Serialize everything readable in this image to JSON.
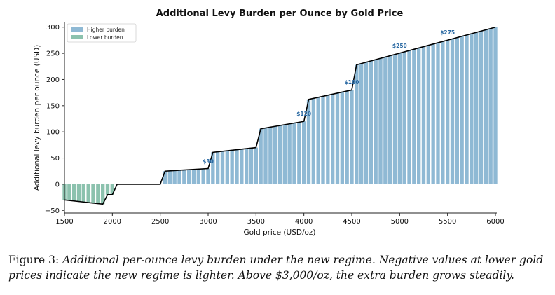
{
  "chart_data": {
    "type": "bar",
    "title": "Additional Levy Burden per Ounce by Gold Price",
    "xlabel": "Gold price (USD/oz)",
    "ylabel": "Additional levy burden per ounce (USD)",
    "xlim": [
      1500,
      6000
    ],
    "ylim": [
      -55,
      305
    ],
    "xticks": [
      1500,
      2000,
      2500,
      3000,
      3500,
      4000,
      4500,
      5000,
      5500,
      6000
    ],
    "yticks": [
      -50,
      0,
      50,
      100,
      150,
      200,
      250,
      300
    ],
    "bar_spacing": 50,
    "legend": {
      "position": "top-left",
      "entries": [
        {
          "name": "Higher burden",
          "color": "#8fb9d4"
        },
        {
          "name": "Lower burden",
          "color": "#8cc2ae"
        }
      ]
    },
    "series": [
      {
        "name": "Higher burden",
        "color": "#8fb9d4"
      },
      {
        "name": "Lower burden",
        "color": "#8cc2ae"
      }
    ],
    "breakpoints": [
      {
        "x": 1500,
        "y": -30
      },
      {
        "x": 1900,
        "y": -38
      },
      {
        "x": 1950,
        "y": -20
      },
      {
        "x": 2000,
        "y": -20
      },
      {
        "x": 2050,
        "y": 0
      },
      {
        "x": 2500,
        "y": 0
      },
      {
        "x": 2550,
        "y": 25
      },
      {
        "x": 3000,
        "y": 30
      },
      {
        "x": 3050,
        "y": 61
      },
      {
        "x": 3500,
        "y": 70
      },
      {
        "x": 3550,
        "y": 106
      },
      {
        "x": 4000,
        "y": 120
      },
      {
        "x": 4050,
        "y": 162
      },
      {
        "x": 4500,
        "y": 180
      },
      {
        "x": 4550,
        "y": 228
      },
      {
        "x": 6000,
        "y": 300
      }
    ],
    "annotations": [
      {
        "text": "$30",
        "x": 3000,
        "y": 40
      },
      {
        "text": "$120",
        "x": 4000,
        "y": 131
      },
      {
        "text": "$180",
        "x": 4500,
        "y": 191
      },
      {
        "text": "$250",
        "x": 5000,
        "y": 261
      },
      {
        "text": "$275",
        "x": 5500,
        "y": 286
      }
    ],
    "grid": false
  },
  "caption": {
    "label": "Figure 3:",
    "text": "Additional per-ounce levy burden under the new regime. Negative values at lower gold prices indicate the new regime is lighter. Above $3,000/oz, the extra burden grows steadily."
  }
}
